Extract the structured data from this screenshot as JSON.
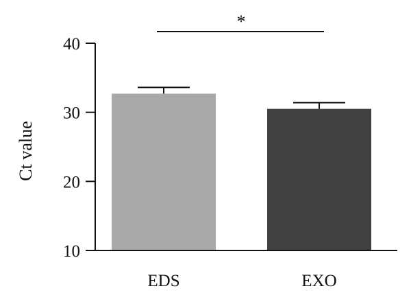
{
  "chart_data": {
    "type": "bar",
    "categories": [
      "EDS",
      "EXO"
    ],
    "values": [
      32.7,
      30.5
    ],
    "errors": [
      0.9,
      0.9
    ],
    "colors": [
      "#a8a8a8",
      "#404040"
    ],
    "ylabel": "Ct value",
    "xlabel": "",
    "ylim": [
      10,
      40
    ],
    "yticks": [
      10,
      20,
      30,
      40
    ],
    "ytick_labels": [
      "10",
      "20",
      "30",
      "40"
    ],
    "grid": false,
    "legend": "none",
    "annotation": {
      "text": "*",
      "between": [
        "EDS",
        "EXO"
      ]
    }
  }
}
